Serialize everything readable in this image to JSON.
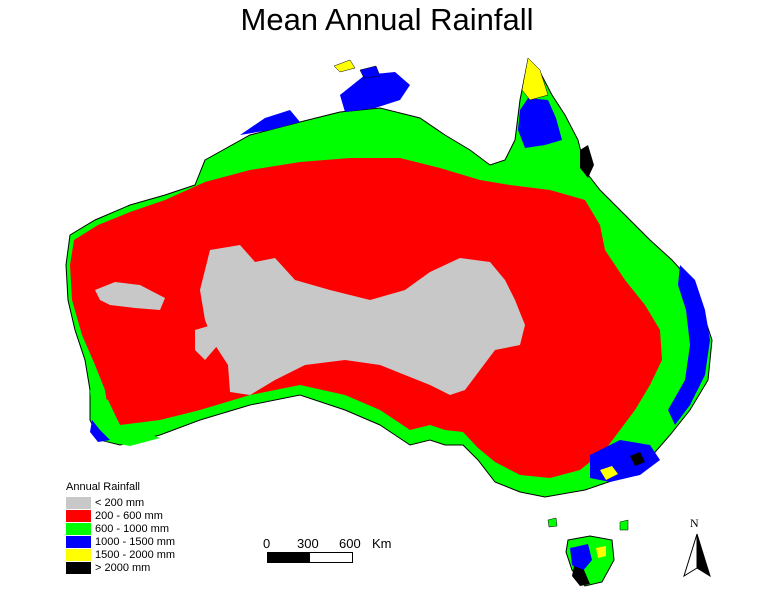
{
  "title": "Mean Annual Rainfall",
  "legend": {
    "title": "Annual Rainfall",
    "items": [
      {
        "label": "< 200 mm",
        "color": "#c8c8c8"
      },
      {
        "label": "200 - 600 mm",
        "color": "#ff0000"
      },
      {
        "label": "600 - 1000 mm",
        "color": "#00ff00"
      },
      {
        "label": "1000 - 1500 mm",
        "color": "#0000ff"
      },
      {
        "label": "1500 - 2000 mm",
        "color": "#ffff00"
      },
      {
        "label": "> 2000 mm",
        "color": "#000000"
      }
    ]
  },
  "scale": {
    "ticks": [
      "0",
      "300",
      "600"
    ],
    "unit": "Km"
  },
  "north_label": "N"
}
